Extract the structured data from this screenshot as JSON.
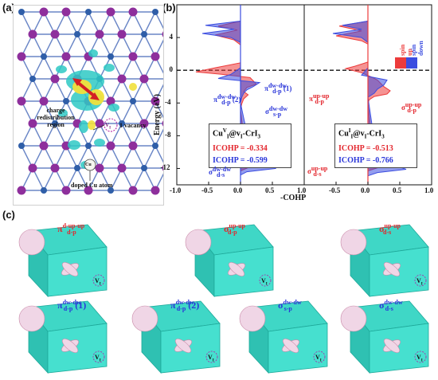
{
  "panels": {
    "a": "(a)",
    "b": "(b)",
    "c": "(c)"
  },
  "panel_a": {
    "charge_text": [
      "charge",
      "redistribution",
      "region"
    ],
    "vacancy_text": "1 vacancy",
    "vi_text": "V",
    "vi_sub": "I",
    "cu_text": "Cu",
    "doped_text": "doped Cu atom",
    "colors": {
      "iodine": "#8e2f9c",
      "chromium": "#2f5ea8",
      "isosurface_yellow": "#f1e03b",
      "isosurface_cyan": "#2ec9c4",
      "arrow": "#d31f25"
    }
  },
  "panel_b": {
    "y_axis_title": "Energy (eV)",
    "x_axis_title": "-COHP",
    "legend": {
      "up": "spin up",
      "down": "spin down",
      "up_color": "#ec3b3b",
      "down_color": "#3b4de0"
    },
    "left_box": {
      "title": "Cu",
      "title_sup": "V",
      "title_sub": "I",
      "title_rest": "@v",
      "title_rest_sub": "I",
      "title_end": "-CrI",
      "title_end_sub": "3",
      "icohp_up_label": "ICOHP",
      "icohp_up_value": "= -0.334",
      "icohp_dn_label": "ICOHP",
      "icohp_dn_value": "= -0.599"
    },
    "right_box": {
      "title": "Cu",
      "title_sup": "I",
      "title_sub": "I",
      "title_rest": "@v",
      "title_rest_sub": "I",
      "title_end": "-CrI",
      "title_end_sub": "3",
      "icohp_up_label": "ICOHP",
      "icohp_up_value": "= -0.513",
      "icohp_dn_label": "ICOHP",
      "icohp_dn_value": "= -0.766"
    },
    "left_labels": {
      "pi_dn2": {
        "main": "π",
        "sup": "dw-dw",
        "sub": "d-p",
        "num": "(2)"
      },
      "pi_dn1": {
        "main": "π",
        "sup": "dw-dw",
        "sub": "d-p",
        "num": "(1)"
      },
      "sigma_sp": {
        "main": "σ",
        "sup": "dw-dw",
        "sub": "s-p"
      },
      "sigma_ds": {
        "main": "σ",
        "sup": "dw-dw",
        "sub": "d-s"
      }
    },
    "right_labels": {
      "pi_up": {
        "main": "π",
        "sup": "up-up",
        "sub": "d-p"
      },
      "sigma_dp": {
        "main": "σ",
        "sup": "up-up",
        "sub": "d-p"
      },
      "sigma_ds": {
        "main": "σ",
        "sup": "up-up",
        "sub": "d-s"
      }
    }
  },
  "chart_data": [
    {
      "type": "area",
      "title": "",
      "xlabel": "-COHP",
      "ylabel": "Energy (eV)",
      "xlim": [
        -1.0,
        1.0
      ],
      "ylim": [
        -14,
        8
      ],
      "x_ticks": [
        "-1.0",
        "-0.5",
        "0.0",
        "0.5",
        "1.0"
      ],
      "y_ticks": [
        "4",
        "0",
        "-4",
        "-8",
        "-12"
      ],
      "fermi_level": 0,
      "series": [
        {
          "name": "spin up",
          "color": "#ec3b3b",
          "energy": [
            6.0,
            5.4,
            4.9,
            4.3,
            3.7,
            3.1,
            0.9,
            0.6,
            0.3,
            -0.2,
            -0.5,
            -0.9,
            -1.3,
            -1.7,
            -2.1,
            -2.6,
            -3.0,
            -3.5,
            -4.1,
            -4.8,
            -11.2,
            -11.5,
            -11.8,
            -12.3
          ],
          "cohp": [
            0.0,
            -0.35,
            -0.05,
            -0.4,
            -0.1,
            0.0,
            0.0,
            -0.2,
            -0.4,
            -0.7,
            -0.3,
            0.15,
            0.2,
            0.25,
            0.1,
            0.05,
            0.12,
            0.05,
            0.02,
            0.0,
            0.1,
            0.45,
            0.15,
            0.0
          ]
        },
        {
          "name": "spin down",
          "color": "#3b4de0",
          "energy": [
            6.0,
            5.5,
            5.0,
            4.5,
            4.0,
            3.4,
            0.3,
            -0.5,
            -1.0,
            -1.5,
            -2.0,
            -2.4,
            -2.8,
            -3.3,
            -4.0,
            -11.3,
            -11.6,
            -12.0,
            -12.4,
            -12.8
          ],
          "cohp": [
            0.0,
            -0.55,
            -0.1,
            -0.6,
            -0.15,
            0.0,
            0.0,
            -0.15,
            -0.35,
            0.3,
            0.2,
            0.1,
            0.05,
            0.02,
            0.0,
            0.2,
            0.5,
            0.55,
            0.1,
            0.0
          ]
        }
      ]
    },
    {
      "type": "area",
      "title": "",
      "xlabel": "-COHP",
      "ylabel": "",
      "xlim": [
        -1.0,
        1.0
      ],
      "ylim": [
        -14,
        8
      ],
      "x_ticks": [
        "-0.5",
        "0.0",
        "0.5",
        "1.0"
      ],
      "y_ticks": [],
      "fermi_level": 0,
      "series": [
        {
          "name": "spin up",
          "color": "#ec3b3b",
          "energy": [
            6.0,
            5.4,
            4.8,
            4.2,
            3.6,
            3.2,
            1.0,
            0.5,
            0.2,
            -0.3,
            -0.8,
            -1.2,
            -1.6,
            -2.0,
            -2.5,
            -2.9,
            -3.2,
            -3.6,
            -4.1,
            -11.0,
            -11.4,
            -11.8,
            -12.3
          ],
          "cohp": [
            0.0,
            -0.45,
            -0.1,
            -0.5,
            -0.1,
            0.0,
            0.0,
            -0.2,
            -0.35,
            -0.1,
            0.05,
            0.15,
            0.2,
            0.25,
            0.35,
            0.3,
            0.1,
            0.02,
            0.0,
            0.1,
            0.6,
            0.2,
            0.0
          ]
        },
        {
          "name": "spin down",
          "color": "#3b4de0",
          "energy": [
            6.0,
            5.5,
            5.0,
            4.5,
            4.0,
            3.4,
            0.3,
            -0.6,
            -1.2,
            -1.8,
            -2.3,
            -2.8,
            -3.3,
            -11.2,
            -11.7,
            -12.1,
            -12.5,
            -12.9
          ],
          "cohp": [
            0.0,
            -0.4,
            -0.1,
            -0.55,
            -0.1,
            0.0,
            0.0,
            -0.1,
            0.3,
            0.25,
            0.15,
            0.1,
            0.0,
            0.15,
            0.45,
            0.6,
            0.15,
            0.0
          ]
        }
      ]
    }
  ],
  "panel_c": {
    "cube_color": "#3fd7c6",
    "cubes": [
      {
        "main": "π",
        "sup": "d-up-up",
        "sub": "d-p",
        "color": "#e3262d"
      },
      {
        "main": "σ",
        "sup": "up-up",
        "sub": "d-p",
        "color": "#e3262d"
      },
      {
        "main": "σ",
        "sup": "up-up",
        "sub": "d-s",
        "color": "#e3262d"
      },
      {
        "main": "π",
        "sup": "dw-dw",
        "sub": "d-p",
        "num": "(1)",
        "color": "#2a36d9"
      },
      {
        "main": "π",
        "sup": "dw-dw",
        "sub": "d-p",
        "num": "(2)",
        "color": "#2a36d9"
      },
      {
        "main": "σ",
        "sup": "dw-dw",
        "sub": "s-p",
        "color": "#2a36d9"
      },
      {
        "main": "σ",
        "sup": "dw-dw",
        "sub": "d-s",
        "color": "#2a36d9"
      }
    ],
    "vacancy_mark": "V",
    "vacancy_sub": "I"
  }
}
